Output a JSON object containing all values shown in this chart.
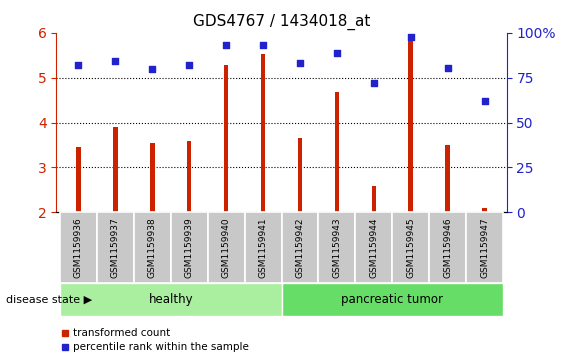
{
  "title": "GDS4767 / 1434018_at",
  "samples": [
    "GSM1159936",
    "GSM1159937",
    "GSM1159938",
    "GSM1159939",
    "GSM1159940",
    "GSM1159941",
    "GSM1159942",
    "GSM1159943",
    "GSM1159944",
    "GSM1159945",
    "GSM1159946",
    "GSM1159947"
  ],
  "bar_values": [
    3.45,
    3.9,
    3.55,
    3.58,
    5.28,
    5.52,
    3.65,
    4.68,
    2.58,
    5.82,
    3.5,
    2.1
  ],
  "dot_values": [
    5.28,
    5.38,
    5.2,
    5.28,
    5.73,
    5.73,
    5.33,
    5.55,
    4.88,
    5.9,
    5.22,
    4.48
  ],
  "bar_color": "#CC2200",
  "dot_color": "#2222CC",
  "ylim_left": [
    2,
    6
  ],
  "ylim_right": [
    0,
    100
  ],
  "yticks_left": [
    2,
    3,
    4,
    5,
    6
  ],
  "ytick_labels_right": [
    "0",
    "25",
    "50",
    "75",
    "100%"
  ],
  "yticks_right": [
    0,
    25,
    50,
    75,
    100
  ],
  "groups": [
    {
      "label": "healthy",
      "start": 0,
      "end": 5,
      "color": "#AAEEA0"
    },
    {
      "label": "pancreatic tumor",
      "start": 6,
      "end": 11,
      "color": "#66DD66"
    }
  ],
  "disease_state_label": "disease state",
  "legend": [
    {
      "label": "transformed count",
      "color": "#CC2200",
      "marker": "s"
    },
    {
      "label": "percentile rank within the sample",
      "color": "#2222CC",
      "marker": "s"
    }
  ],
  "bar_width": 0.12,
  "background_color": "#FFFFFF",
  "tick_label_fontsize": 6.5,
  "title_fontsize": 11,
  "axis_color_left": "#CC2200",
  "axis_color_right": "#2222CC",
  "label_box_color": "#C8C8C8",
  "dot_size": 18
}
